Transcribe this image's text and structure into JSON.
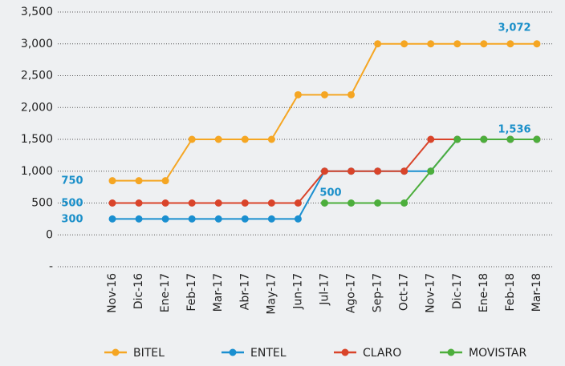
{
  "chart_data": {
    "type": "line",
    "categories": [
      "Nov-16",
      "Dic-16",
      "Ene-17",
      "Feb-17",
      "Mar-17",
      "Abr-17",
      "May-17",
      "Jun-17",
      "Jul-17",
      "Ago-17",
      "Sep-17",
      "Oct-17",
      "Nov-17",
      "Dic-17",
      "Ene-18",
      "Feb-18",
      "Mar-18"
    ],
    "series": [
      {
        "name": "BITEL",
        "color": "#f5a623",
        "values": [
          850,
          850,
          850,
          1500,
          1500,
          1500,
          1500,
          2200,
          2200,
          2200,
          3000,
          3000,
          3000,
          3000,
          3000,
          3000,
          3000
        ]
      },
      {
        "name": "ENTEL",
        "color": "#1a8fd0",
        "values": [
          250,
          250,
          250,
          250,
          250,
          250,
          250,
          250,
          1000,
          1000,
          1000,
          1000,
          1000,
          1500,
          1500,
          1500,
          1500
        ]
      },
      {
        "name": "CLARO",
        "color": "#d9442a",
        "values": [
          500,
          500,
          500,
          500,
          500,
          500,
          500,
          500,
          1000,
          1000,
          1000,
          1000,
          1500,
          1500,
          1500,
          1500,
          1500
        ]
      },
      {
        "name": "MOVISTAR",
        "color": "#4cae3c",
        "values": [
          null,
          null,
          null,
          null,
          null,
          null,
          null,
          null,
          500,
          500,
          500,
          500,
          1000,
          1500,
          1500,
          1500,
          1500
        ]
      }
    ],
    "ylim": [
      -500,
      3500
    ],
    "yticks": [
      {
        "value": -500,
        "label": "-"
      },
      0,
      500,
      {
        "value": 1000,
        "label": "1,000"
      },
      {
        "value": 1500,
        "label": "1,500"
      },
      {
        "value": 2000,
        "label": "2,000"
      },
      {
        "value": 2500,
        "label": "2,500"
      },
      {
        "value": 3000,
        "label": "3,000"
      },
      {
        "value": 3500,
        "label": "3,500"
      }
    ],
    "grid": true,
    "legend": "bottom",
    "annotations": [
      "3,072",
      "1,536",
      "750",
      "500",
      "300",
      "500"
    ]
  }
}
